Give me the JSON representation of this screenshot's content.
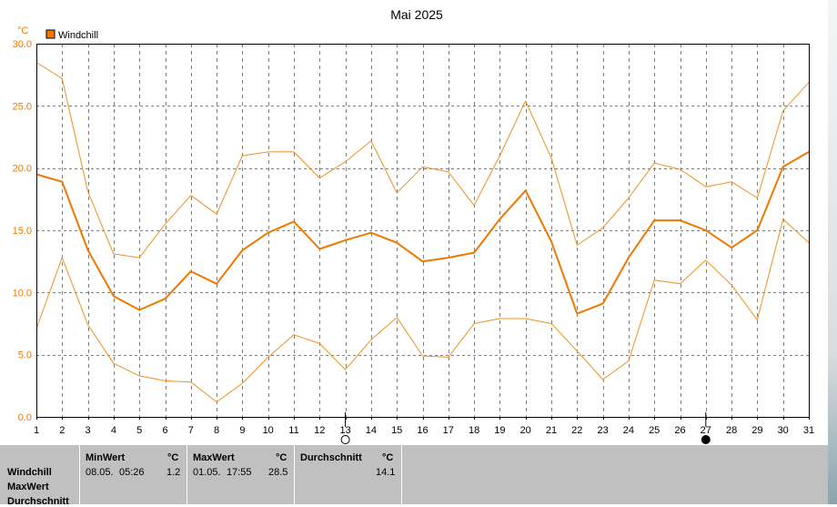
{
  "chart_data": {
    "type": "line",
    "title": "Mai 2025",
    "unit": "°C",
    "legend": [
      "Windchill"
    ],
    "legend_position": "top-left",
    "x": [
      1,
      2,
      3,
      4,
      5,
      6,
      7,
      8,
      9,
      10,
      11,
      12,
      13,
      14,
      15,
      16,
      17,
      18,
      19,
      20,
      21,
      22,
      23,
      24,
      25,
      26,
      27,
      28,
      29,
      30,
      31
    ],
    "ylim": [
      0,
      30
    ],
    "yticks": [
      "0.0",
      "5.0",
      "10.0",
      "15.0",
      "20.0",
      "25.0",
      "30.0"
    ],
    "grid": true,
    "series": [
      {
        "name": "Windchill",
        "role": "mean",
        "values": [
          19.5,
          18.9,
          13.4,
          9.7,
          8.6,
          9.5,
          11.7,
          10.7,
          13.4,
          14.8,
          15.7,
          13.5,
          14.2,
          14.8,
          14.0,
          12.5,
          12.8,
          13.2,
          15.9,
          18.2,
          14.1,
          8.3,
          9.1,
          12.8,
          15.8,
          15.8,
          15.0,
          13.6,
          15.0,
          20.1,
          21.3
        ]
      },
      {
        "role": "max",
        "values": [
          28.5,
          27.2,
          18.1,
          13.1,
          12.8,
          15.5,
          17.8,
          16.3,
          21.0,
          21.3,
          21.3,
          19.2,
          20.5,
          22.2,
          18.0,
          20.1,
          19.7,
          17.0,
          21.0,
          25.4,
          20.8,
          13.8,
          15.2,
          17.6,
          20.4,
          19.9,
          18.5,
          18.9,
          17.6,
          24.6,
          26.9
        ]
      },
      {
        "role": "min",
        "values": [
          7.1,
          12.8,
          7.4,
          4.3,
          3.3,
          2.9,
          2.8,
          1.2,
          2.7,
          4.8,
          6.6,
          5.9,
          3.8,
          6.2,
          8.0,
          4.9,
          4.8,
          7.5,
          7.9,
          7.9,
          7.5,
          5.3,
          3.0,
          4.5,
          11.0,
          10.7,
          12.6,
          10.6,
          7.8,
          15.9,
          14.0
        ]
      }
    ],
    "markers": [
      {
        "day": 13,
        "symbol": "hollow-circle"
      },
      {
        "day": 27,
        "symbol": "filled-circle"
      }
    ],
    "colors": {
      "mean": "#f07800",
      "band": "#f09020",
      "grid": "#808080",
      "legend_swatch": "#f07800"
    }
  },
  "stats": {
    "rows": [
      "Windchill",
      "MaxWert",
      "Durchschnitt"
    ],
    "min": {
      "label": "MinWert",
      "unit": "°C",
      "date": "08.05.",
      "time": "05:26",
      "value": "1.2"
    },
    "max": {
      "label": "MaxWert",
      "unit": "°C",
      "date": "01.05.",
      "time": "17:55",
      "value": "28.5"
    },
    "avg": {
      "label": "Durchschnitt",
      "unit": "°C",
      "value": "14.1"
    }
  }
}
